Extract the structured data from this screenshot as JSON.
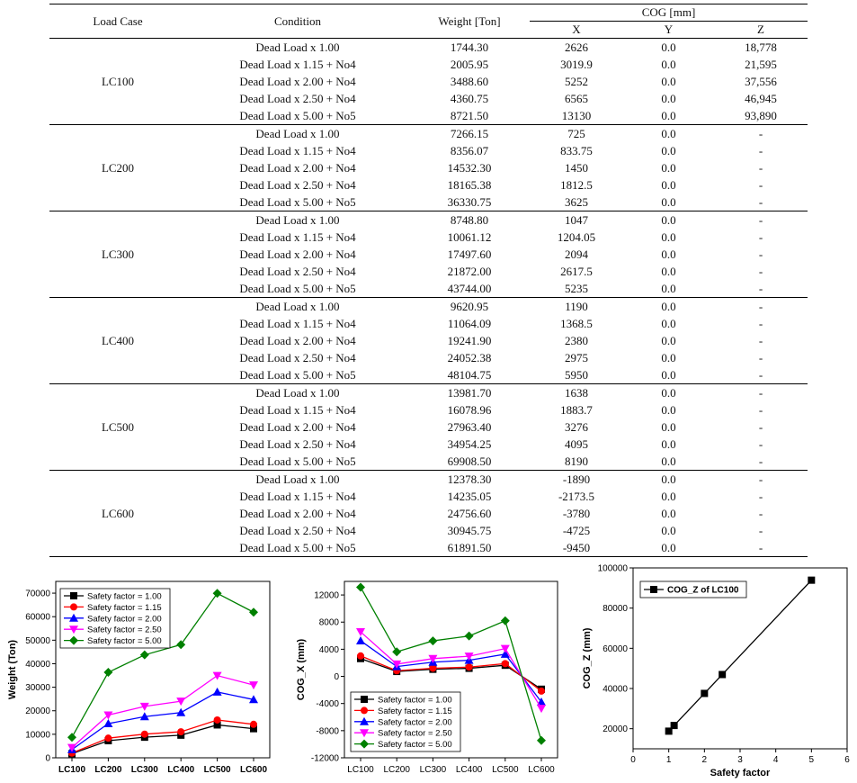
{
  "table": {
    "headers": {
      "load_case": "Load Case",
      "condition": "Condition",
      "weight": "Weight [Ton]",
      "cog": "COG [mm]",
      "x": "X",
      "y": "Y",
      "z": "Z"
    },
    "groups": [
      {
        "case": "LC100",
        "rows": [
          {
            "condition": "Dead Load x 1.00",
            "weight": "1744.30",
            "x": "2626",
            "y": "0.0",
            "z": "18,778"
          },
          {
            "condition": "Dead Load x 1.15 + No4",
            "weight": "2005.95",
            "x": "3019.9",
            "y": "0.0",
            "z": "21,595"
          },
          {
            "condition": "Dead Load x 2.00 + No4",
            "weight": "3488.60",
            "x": "5252",
            "y": "0.0",
            "z": "37,556"
          },
          {
            "condition": "Dead Load x 2.50 + No4",
            "weight": "4360.75",
            "x": "6565",
            "y": "0.0",
            "z": "46,945"
          },
          {
            "condition": "Dead Load x 5.00 + No5",
            "weight": "8721.50",
            "x": "13130",
            "y": "0.0",
            "z": "93,890"
          }
        ]
      },
      {
        "case": "LC200",
        "rows": [
          {
            "condition": "Dead Load x 1.00",
            "weight": "7266.15",
            "x": "725",
            "y": "0.0",
            "z": "-"
          },
          {
            "condition": "Dead Load x 1.15 + No4",
            "weight": "8356.07",
            "x": "833.75",
            "y": "0.0",
            "z": "-"
          },
          {
            "condition": "Dead Load x 2.00 + No4",
            "weight": "14532.30",
            "x": "1450",
            "y": "0.0",
            "z": "-"
          },
          {
            "condition": "Dead Load x 2.50 + No4",
            "weight": "18165.38",
            "x": "1812.5",
            "y": "0.0",
            "z": "-"
          },
          {
            "condition": "Dead Load x 5.00 + No5",
            "weight": "36330.75",
            "x": "3625",
            "y": "0.0",
            "z": "-"
          }
        ]
      },
      {
        "case": "LC300",
        "rows": [
          {
            "condition": "Dead Load x 1.00",
            "weight": "8748.80",
            "x": "1047",
            "y": "0.0",
            "z": "-"
          },
          {
            "condition": "Dead Load x 1.15 + No4",
            "weight": "10061.12",
            "x": "1204.05",
            "y": "0.0",
            "z": "-"
          },
          {
            "condition": "Dead Load x 2.00 + No4",
            "weight": "17497.60",
            "x": "2094",
            "y": "0.0",
            "z": "-"
          },
          {
            "condition": "Dead Load x 2.50 + No4",
            "weight": "21872.00",
            "x": "2617.5",
            "y": "0.0",
            "z": "-"
          },
          {
            "condition": "Dead Load x 5.00 + No5",
            "weight": "43744.00",
            "x": "5235",
            "y": "0.0",
            "z": "-"
          }
        ]
      },
      {
        "case": "LC400",
        "rows": [
          {
            "condition": "Dead Load x 1.00",
            "weight": "9620.95",
            "x": "1190",
            "y": "0.0",
            "z": "-"
          },
          {
            "condition": "Dead Load x 1.15 + No4",
            "weight": "11064.09",
            "x": "1368.5",
            "y": "0.0",
            "z": "-"
          },
          {
            "condition": "Dead Load x 2.00 + No4",
            "weight": "19241.90",
            "x": "2380",
            "y": "0.0",
            "z": "-"
          },
          {
            "condition": "Dead Load x 2.50 + No4",
            "weight": "24052.38",
            "x": "2975",
            "y": "0.0",
            "z": "-"
          },
          {
            "condition": "Dead Load x 5.00 + No5",
            "weight": "48104.75",
            "x": "5950",
            "y": "0.0",
            "z": "-"
          }
        ]
      },
      {
        "case": "LC500",
        "rows": [
          {
            "condition": "Dead Load x 1.00",
            "weight": "13981.70",
            "x": "1638",
            "y": "0.0",
            "z": "-"
          },
          {
            "condition": "Dead Load x 1.15 + No4",
            "weight": "16078.96",
            "x": "1883.7",
            "y": "0.0",
            "z": "-"
          },
          {
            "condition": "Dead Load x 2.00 + No4",
            "weight": "27963.40",
            "x": "3276",
            "y": "0.0",
            "z": "-"
          },
          {
            "condition": "Dead Load x 2.50 + No4",
            "weight": "34954.25",
            "x": "4095",
            "y": "0.0",
            "z": "-"
          },
          {
            "condition": "Dead Load x 5.00 + No5",
            "weight": "69908.50",
            "x": "8190",
            "y": "0.0",
            "z": "-"
          }
        ]
      },
      {
        "case": "LC600",
        "rows": [
          {
            "condition": "Dead Load x 1.00",
            "weight": "12378.30",
            "x": "-1890",
            "y": "0.0",
            "z": "-"
          },
          {
            "condition": "Dead Load x 1.15 + No4",
            "weight": "14235.05",
            "x": "-2173.5",
            "y": "0.0",
            "z": "-"
          },
          {
            "condition": "Dead Load x 2.00 + No4",
            "weight": "24756.60",
            "x": "-3780",
            "y": "0.0",
            "z": "-"
          },
          {
            "condition": "Dead Load x 2.50 + No4",
            "weight": "30945.75",
            "x": "-4725",
            "y": "0.0",
            "z": "-"
          },
          {
            "condition": "Dead Load x 5.00 + No5",
            "weight": "61891.50",
            "x": "-9450",
            "y": "0.0",
            "z": "-"
          }
        ]
      }
    ]
  },
  "chart_data": [
    {
      "type": "line",
      "ylabel": "Weight (Ton)",
      "xlabel": "",
      "categories": [
        "LC100",
        "LC200",
        "LC300",
        "LC400",
        "LC500",
        "LC600"
      ],
      "ylim": [
        0,
        75000
      ],
      "yticks": [
        0,
        10000,
        20000,
        30000,
        40000,
        50000,
        60000,
        70000
      ],
      "grid": false,
      "legend": "top-left",
      "series": [
        {
          "name": "Safety factor = 1.00",
          "color": "#000000",
          "marker": "square",
          "values": [
            1744.3,
            7266.15,
            8748.8,
            9620.95,
            13981.7,
            12378.3
          ]
        },
        {
          "name": "Safety factor = 1.15",
          "color": "#ff0000",
          "marker": "circle",
          "values": [
            2005.95,
            8356.07,
            10061.12,
            11064.09,
            16078.96,
            14235.05
          ]
        },
        {
          "name": "Safety factor = 2.00",
          "color": "#0000ff",
          "marker": "triangle-up",
          "values": [
            3488.6,
            14532.3,
            17497.6,
            19241.9,
            27963.4,
            24756.6
          ]
        },
        {
          "name": "Safety factor = 2.50",
          "color": "#ff00ff",
          "marker": "triangle-down",
          "values": [
            4360.75,
            18165.38,
            21872.0,
            24052.38,
            34954.25,
            30945.75
          ]
        },
        {
          "name": "Safety factor = 5.00",
          "color": "#008000",
          "marker": "diamond",
          "values": [
            8721.5,
            36330.75,
            43744.0,
            48104.75,
            69908.5,
            61891.5
          ]
        }
      ]
    },
    {
      "type": "line",
      "ylabel": "COG_X (mm)",
      "xlabel": "",
      "categories": [
        "LC100",
        "LC200",
        "LC300",
        "LC400",
        "LC500",
        "LC600"
      ],
      "ylim": [
        -12000,
        14000
      ],
      "yticks": [
        -12000,
        -8000,
        -4000,
        0,
        4000,
        8000,
        12000
      ],
      "grid": false,
      "legend": "bottom-left",
      "series": [
        {
          "name": "Safety factor = 1.00",
          "color": "#000000",
          "marker": "square",
          "values": [
            2626,
            725,
            1047,
            1190,
            1638,
            -1890
          ]
        },
        {
          "name": "Safety factor = 1.15",
          "color": "#ff0000",
          "marker": "circle",
          "values": [
            3019.9,
            833.75,
            1204.05,
            1368.5,
            1883.7,
            -2173.5
          ]
        },
        {
          "name": "Safety factor = 2.00",
          "color": "#0000ff",
          "marker": "triangle-up",
          "values": [
            5252,
            1450,
            2094,
            2380,
            3276,
            -3780
          ]
        },
        {
          "name": "Safety factor = 2.50",
          "color": "#ff00ff",
          "marker": "triangle-down",
          "values": [
            6565,
            1812.5,
            2617.5,
            2975,
            4095,
            -4725
          ]
        },
        {
          "name": "Safety factor = 5.00",
          "color": "#008000",
          "marker": "diamond",
          "values": [
            13130,
            3625,
            5235,
            5950,
            8190,
            -9450
          ]
        }
      ]
    },
    {
      "type": "line",
      "xlabel": "Safety factor",
      "ylabel": "COG_Z (mm)",
      "xlim": [
        0,
        6
      ],
      "xticks": [
        0,
        1,
        2,
        3,
        4,
        5,
        6
      ],
      "ylim": [
        10000,
        100000
      ],
      "yticks": [
        20000,
        40000,
        60000,
        80000,
        100000
      ],
      "grid": false,
      "legend": "top-left",
      "series": [
        {
          "name": "COG_Z of LC100",
          "color": "#000000",
          "marker": "square",
          "x": [
            1.0,
            1.15,
            2.0,
            2.5,
            5.0
          ],
          "y": [
            18778,
            21595,
            37556,
            46945,
            93890
          ]
        }
      ]
    }
  ]
}
